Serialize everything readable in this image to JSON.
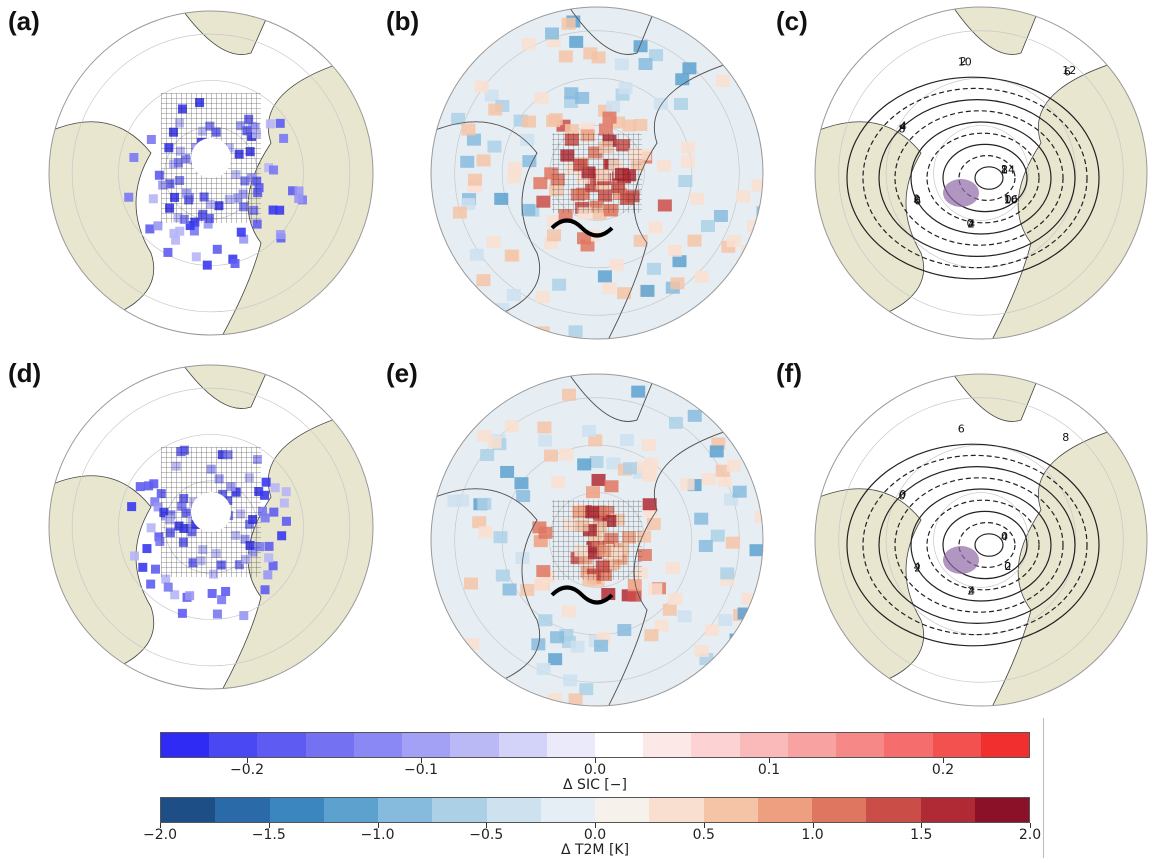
{
  "panels": [
    {
      "label": "(a)",
      "kind": "sic"
    },
    {
      "label": "(b)",
      "kind": "t2m"
    },
    {
      "label": "(c)",
      "kind": "contour"
    },
    {
      "label": "(d)",
      "kind": "sic"
    },
    {
      "label": "(e)",
      "kind": "t2m"
    },
    {
      "label": "(f)",
      "kind": "contour"
    }
  ],
  "colorbars": [
    {
      "name": "sic",
      "label": "Δ SIC [−]",
      "ticks": [
        {
          "text": "−0.2",
          "frac": 0.1
        },
        {
          "text": "−0.1",
          "frac": 0.3
        },
        {
          "text": "0.0",
          "frac": 0.5
        },
        {
          "text": "0.1",
          "frac": 0.7
        },
        {
          "text": "0.2",
          "frac": 0.9
        }
      ],
      "colors": [
        "#2f2bf5",
        "#4a48f3",
        "#5d5bf2",
        "#7472f3",
        "#8a88f4",
        "#a3a1f5",
        "#bab9f6",
        "#d3d2f8",
        "#ebeafb",
        "#ffffff",
        "#fde8e8",
        "#fcd2d2",
        "#fbbaba",
        "#f9a2a2",
        "#f78888",
        "#f56d6d",
        "#f35050",
        "#f22f2f"
      ]
    },
    {
      "name": "t2m",
      "label": "Δ T2M [K]",
      "ticks": [
        {
          "text": "−2.0",
          "frac": 0.0
        },
        {
          "text": "−1.5",
          "frac": 0.125
        },
        {
          "text": "−1.0",
          "frac": 0.25
        },
        {
          "text": "−0.5",
          "frac": 0.375
        },
        {
          "text": "0.0",
          "frac": 0.5
        },
        {
          "text": "0.5",
          "frac": 0.625
        },
        {
          "text": "1.0",
          "frac": 0.75
        },
        {
          "text": "1.5",
          "frac": 0.875
        },
        {
          "text": "2.0",
          "frac": 1.0
        }
      ],
      "colors": [
        "#1d4e86",
        "#2a6aa8",
        "#3c86bf",
        "#5da1cf",
        "#86bbdd",
        "#acd0e6",
        "#cde1ee",
        "#e5eef4",
        "#f7f1ec",
        "#f9dfcf",
        "#f5c3a6",
        "#ee9f7f",
        "#df7660",
        "#cb4d48",
        "#b02a35",
        "#8a1128"
      ]
    }
  ],
  "contour_labels": {
    "c": [
      "2",
      "0",
      "4",
      "6",
      "8",
      "10",
      "12",
      "14",
      "16",
      "2",
      "0",
      "4",
      "2",
      "6",
      "8",
      "10",
      "0",
      "2",
      "4"
    ],
    "f": [
      "0",
      "2",
      "4",
      "2",
      "0",
      "6",
      "8",
      "4",
      "0",
      "2",
      "4",
      "0"
    ]
  }
}
